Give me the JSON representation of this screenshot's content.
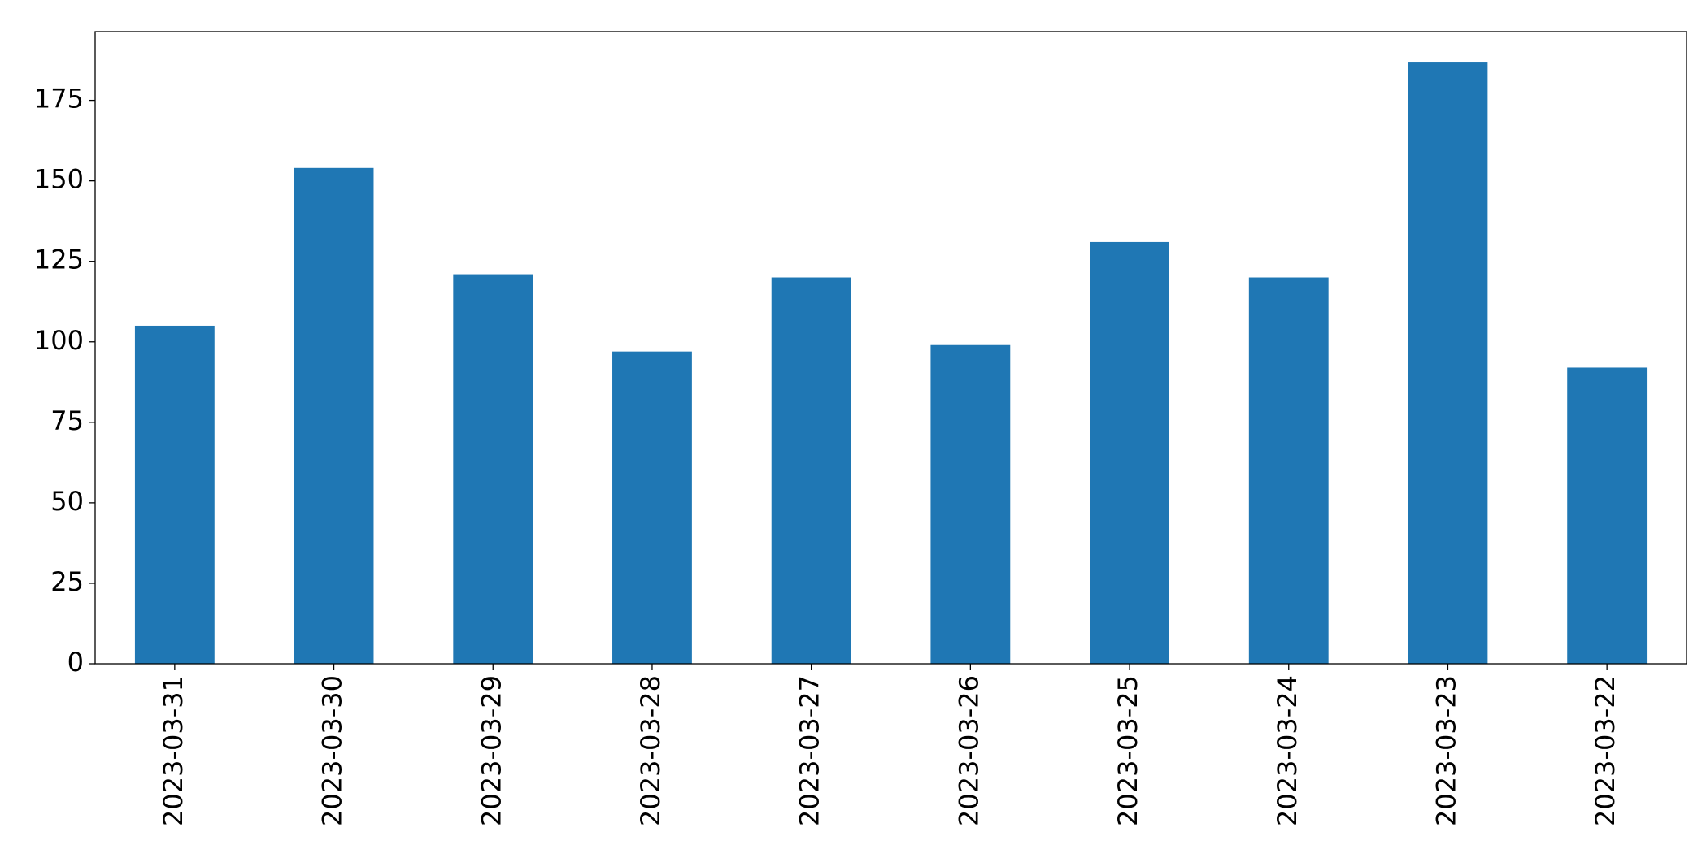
{
  "chart_data": {
    "type": "bar",
    "categories": [
      "2023-03-31",
      "2023-03-30",
      "2023-03-29",
      "2023-03-28",
      "2023-03-27",
      "2023-03-26",
      "2023-03-25",
      "2023-03-24",
      "2023-03-23",
      "2023-03-22"
    ],
    "values": [
      105,
      154,
      121,
      97,
      120,
      99,
      131,
      120,
      187,
      92
    ],
    "color": "#1f77b4",
    "ylim": [
      0,
      196.35
    ],
    "yticks": [
      0,
      25,
      50,
      75,
      100,
      125,
      150,
      175
    ],
    "grid": false
  }
}
